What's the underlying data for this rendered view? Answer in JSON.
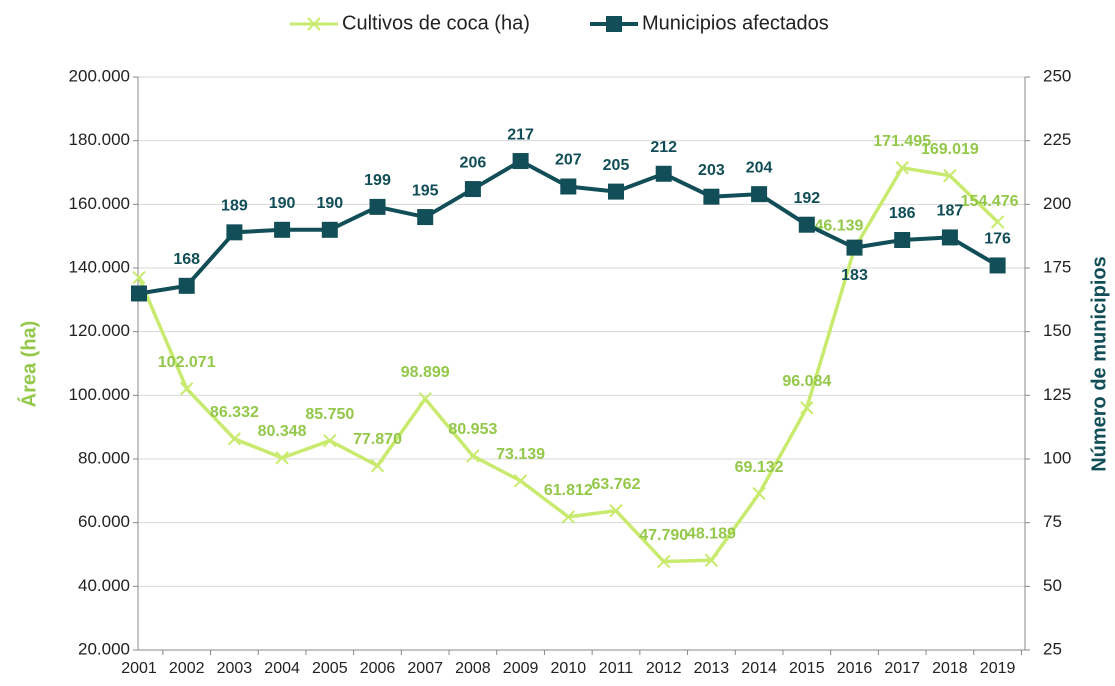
{
  "chart_data": {
    "type": "line",
    "categories": [
      "2001",
      "2002",
      "2003",
      "2004",
      "2005",
      "2006",
      "2007",
      "2008",
      "2009",
      "2010",
      "2011",
      "2012",
      "2013",
      "2014",
      "2015",
      "2016",
      "2017",
      "2018",
      "2019"
    ],
    "series": [
      {
        "name": "Cultivos de coca (ha)",
        "color": "#c8ea6e",
        "label_color": "#93c84a",
        "marker": "x",
        "values": [
          137000,
          102071,
          86332,
          80348,
          85750,
          77870,
          98899,
          80953,
          73139,
          61812,
          63762,
          47790,
          48189,
          69132,
          96084,
          146139,
          171495,
          169019,
          154476
        ],
        "value_labels": [
          null,
          "102.071",
          "86.332",
          "80.348",
          "85.750",
          "77.870",
          "98.899",
          "80.953",
          "73.139",
          "61.812",
          "63.762",
          "47.790",
          "48.189",
          "69.132",
          "96.084",
          "146.139",
          "171.495",
          "169.019",
          "154.476"
        ]
      },
      {
        "name": "Municipios afectados",
        "color": "#124e57",
        "label_color": "#124e57",
        "marker": "square",
        "axis": "y2",
        "values": [
          165,
          168,
          189,
          190,
          190,
          199,
          195,
          206,
          217,
          207,
          205,
          212,
          203,
          204,
          192,
          183,
          186,
          187,
          176
        ],
        "value_labels": [
          null,
          "168",
          "189",
          "190",
          "190",
          "199",
          "195",
          "206",
          "217",
          "207",
          "205",
          "212",
          "203",
          "204",
          "192",
          "183",
          "186",
          "187",
          "176"
        ]
      }
    ],
    "ylabel": "Área (ha)",
    "y2label": "Número de municipios",
    "ylim": [
      20000,
      200000
    ],
    "yticks": [
      {
        "value": 20000,
        "label": "20.000"
      },
      {
        "value": 40000,
        "label": "40.000"
      },
      {
        "value": 60000,
        "label": "60.000"
      },
      {
        "value": 80000,
        "label": "80.000"
      },
      {
        "value": 100000,
        "label": "100.000"
      },
      {
        "value": 120000,
        "label": "120.000"
      },
      {
        "value": 140000,
        "label": "140.000"
      },
      {
        "value": 160000,
        "label": "160.000"
      },
      {
        "value": 180000,
        "label": "180.000"
      },
      {
        "value": 200000,
        "label": "200.000"
      }
    ],
    "y2lim": [
      25,
      250
    ],
    "y2ticks": [
      25,
      50,
      75,
      100,
      125,
      150,
      175,
      200,
      225,
      250
    ],
    "grid": true,
    "legend": "top"
  }
}
